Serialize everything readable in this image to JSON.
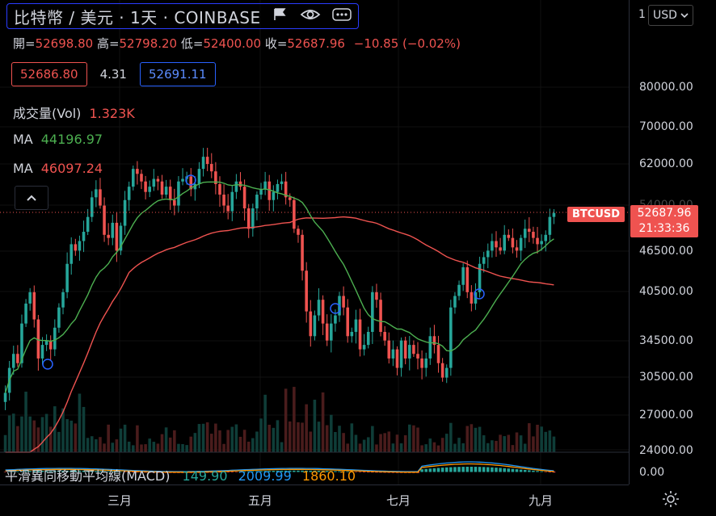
{
  "header": {
    "title": "比特幣 / 美元 · 1天 · COINBASE",
    "flag_icon": "flag-icon",
    "eye_icon": "eye-icon",
    "more_icon": "more-icon"
  },
  "ohlc": {
    "open_label": "開=",
    "open": "52698.80",
    "high_label": "高=",
    "high": "52798.20",
    "low_label": "低=",
    "low": "52400.00",
    "close_label": "收=",
    "close": "52687.96",
    "change": "−10.85 (−0.02%)"
  },
  "quote": {
    "bid": "52686.80",
    "spread": "4.31",
    "ask": "52691.11"
  },
  "indicators": {
    "volume": {
      "name": "成交量(Vol)",
      "value": "1.323K",
      "color": "#ef5350"
    },
    "ma1": {
      "name": "MA",
      "value": "44196.97",
      "color": "#4caf50"
    },
    "ma2": {
      "name": "MA",
      "value": "46097.24",
      "color": "#ef5350"
    }
  },
  "macd": {
    "name": "平滑異同移動平均線(MACD)",
    "hist": "149.90",
    "hist_color": "#26a69a",
    "macd": "2009.99",
    "macd_color": "#2196f3",
    "signal": "1860.10",
    "signal_color": "#ff9800"
  },
  "price_axis": {
    "currency": "USD",
    "top_partial": "1",
    "ticks": [
      "80000.00",
      "70000.00",
      "62000.00",
      "54000.00",
      "46500.00",
      "40500.00",
      "34500.00",
      "30500.00",
      "27000.00",
      "24000.00",
      "0.00"
    ]
  },
  "last_price": {
    "symbol": "BTCUSD",
    "price": "52687.96",
    "countdown": "21:33:36",
    "color": "#ef5350"
  },
  "time_axis": {
    "labels": [
      "三月",
      "五月",
      "七月",
      "九月"
    ]
  },
  "chart_data": {
    "type": "candlestick",
    "up_color": "#26a69a",
    "down_color": "#ef5350",
    "close": [
      29000,
      31500,
      33000,
      32000,
      36500,
      39000,
      40500,
      37000,
      32500,
      34000,
      34500,
      33500,
      36000,
      38500,
      40500,
      44500,
      47500,
      46500,
      48000,
      49500,
      52000,
      55500,
      57000,
      54000,
      49000,
      48500,
      51000,
      46500,
      50500,
      55000,
      57500,
      61000,
      60000,
      58500,
      56500,
      57500,
      59000,
      58500,
      56000,
      57500,
      55000,
      54000,
      58500,
      59000,
      59500,
      57000,
      58000,
      61000,
      63500,
      62000,
      60500,
      58000,
      56000,
      54000,
      53000,
      56500,
      58500,
      57500,
      53500,
      50000,
      53500,
      56000,
      57000,
      58500,
      55000,
      56500,
      58000,
      58500,
      55500,
      55000,
      50000,
      49000,
      43500,
      38000,
      35000,
      37500,
      39500,
      36500,
      34500,
      36500,
      37500,
      40000,
      38500,
      35000,
      35500,
      37000,
      33500,
      34000,
      35500,
      40500,
      39500,
      35500,
      34500,
      32500,
      33500,
      31500,
      34500,
      32500,
      34000,
      33000,
      32500,
      31500,
      32500,
      35000,
      34000,
      32000,
      30500,
      31500,
      38500,
      40000,
      41500,
      44000,
      40500,
      39000,
      40500,
      44500,
      45500,
      46500,
      48000,
      47000,
      46500,
      49000,
      48500,
      47000,
      46500,
      48500,
      50000,
      49500,
      48500,
      47500,
      48000,
      49000,
      52000,
      52688
    ],
    "ma_fast": "44196.97",
    "ma_slow": "46097.24"
  }
}
